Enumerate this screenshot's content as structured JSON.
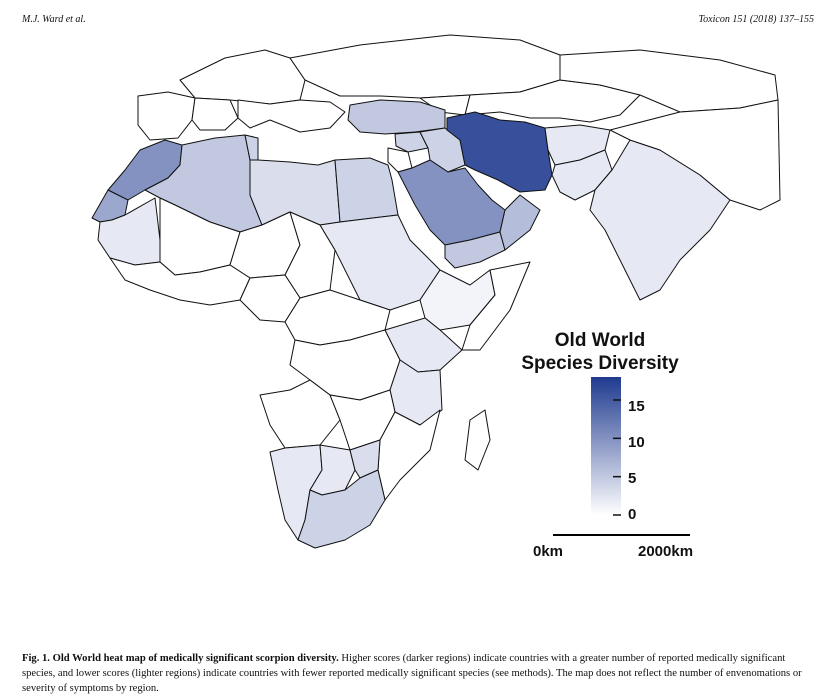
{
  "header": {
    "authors": "M.J. Ward et al.",
    "journal": "Toxicon 151 (2018) 137–155"
  },
  "legend": {
    "title_line1": "Old World",
    "title_line2": "Species Diversity",
    "ticks": [
      "15",
      "10",
      "5",
      "0"
    ],
    "tick_values": [
      15,
      10,
      5,
      0
    ],
    "max_value": 18,
    "color_low": "#ffffff",
    "color_high": "#1f3a8f"
  },
  "scale_bar": {
    "start_label": "0km",
    "end_label": "2000km"
  },
  "regions": {
    "Iran": 16,
    "Saudi Arabia": 10,
    "Morocco": 10,
    "Western Sahara": 8,
    "Algeria": 5,
    "Yemen": 5,
    "Oman": 6,
    "Turkey": 5,
    "Egypt": 4,
    "Libya": 3,
    "Tunisia": 4,
    "Iraq": 4,
    "Israel": 5,
    "Jordan": 5,
    "Syria": 4,
    "South Africa": 4,
    "Zimbabwe": 3,
    "Botswana": 2,
    "Namibia": 2,
    "Tanzania": 2,
    "Kenya": 2,
    "Pakistan": 2,
    "Afghanistan": 2,
    "India": 2,
    "Mauritania": 2,
    "Sudan": 2,
    "Ethiopia": 1
  },
  "caption": {
    "label": "Fig. 1.",
    "title": "Old World heat map of medically significant scorpion diversity.",
    "text": "Higher scores (darker regions) indicate countries with a greater number of reported medically significant species, and lower scores (lighter regions) indicate countries with fewer reported medically significant species (see methods). The map does not reflect the number of envenomations or severity of symptoms by region."
  }
}
